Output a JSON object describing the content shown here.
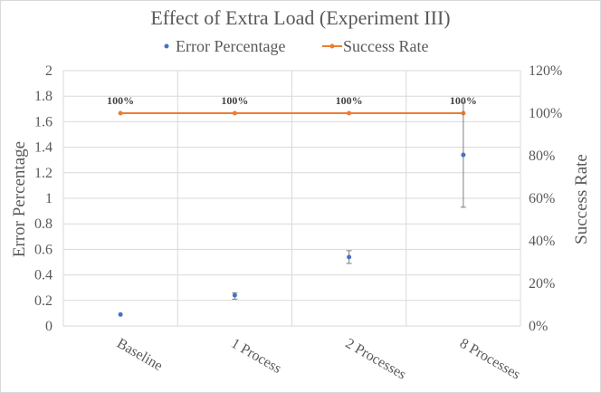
{
  "chart_data": {
    "type": "line",
    "title": "Effect of Extra Load (Experiment III)",
    "categories": [
      "Baseline",
      "1 Process",
      "2 Processes",
      "8 Processes"
    ],
    "ylabel": "Error Percentage",
    "y2label": "Success Rate",
    "ylim": [
      0,
      2
    ],
    "yticks": [
      "0",
      "0.2",
      "0.4",
      "0.6",
      "0.8",
      "1",
      "1.2",
      "1.4",
      "1.6",
      "1.8",
      "2"
    ],
    "y2lim": [
      0,
      120
    ],
    "y2ticks": [
      "0%",
      "20%",
      "40%",
      "60%",
      "80%",
      "100%",
      "120%"
    ],
    "grid": true,
    "legend_position": "top",
    "series": [
      {
        "name": "Error Percentage",
        "axis": "left",
        "style": "markers",
        "color": "#4472c4",
        "values": [
          0.09,
          0.24,
          0.54,
          1.34
        ],
        "error_low": [
          0.09,
          0.21,
          0.49,
          0.93
        ],
        "error_high": [
          0.09,
          0.26,
          0.59,
          1.75
        ]
      },
      {
        "name": "Success Rate",
        "axis": "right",
        "style": "line",
        "color": "#ed7d31",
        "values": [
          100,
          100,
          100,
          100
        ],
        "data_labels": [
          "100%",
          "100%",
          "100%",
          "100%"
        ]
      }
    ]
  }
}
